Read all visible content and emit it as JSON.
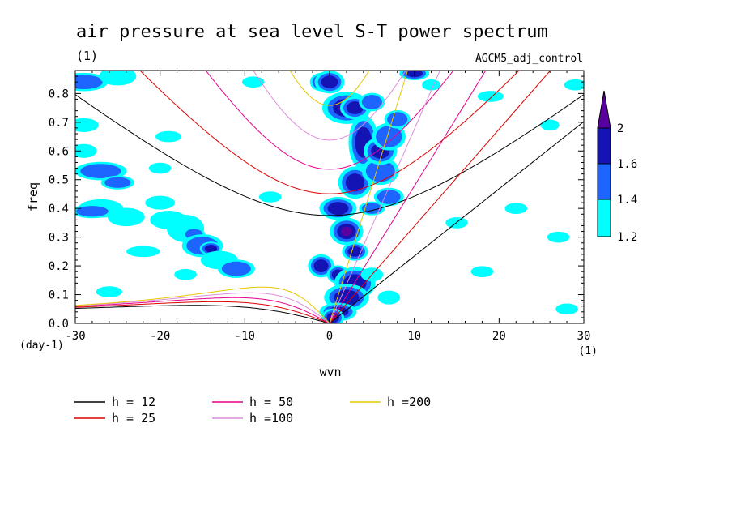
{
  "chart_data": {
    "type": "heatmap",
    "title": "air pressure at sea level S-T power spectrum",
    "subtitle_units": "(1)",
    "dataset_label": "AGCM5_adj_control",
    "xlabel": "wvn",
    "ylabel": "freq",
    "y_units": "(day-1)",
    "x_units": "(1)",
    "xlim": [
      -30,
      30
    ],
    "ylim": [
      0,
      0.88
    ],
    "x_ticks": [
      -30,
      -20,
      -10,
      0,
      10,
      20,
      30
    ],
    "x_tick_labels": [
      "-30",
      "-20",
      "-10",
      "0",
      "10",
      "20",
      "30"
    ],
    "y_ticks": [
      0.0,
      0.1,
      0.2,
      0.3,
      0.4,
      0.5,
      0.6,
      0.7,
      0.8
    ],
    "y_tick_labels": [
      "0.0",
      "0.1",
      "0.2",
      "0.3",
      "0.4",
      "0.5",
      "0.6",
      "0.7",
      "0.8"
    ],
    "colorbar": {
      "levels": [
        1.2,
        1.4,
        1.6,
        2
      ],
      "labels": [
        "1.2",
        "1.4",
        "1.6",
        "2"
      ],
      "colors": [
        "#00ffff",
        "#1e64ff",
        "#1414b4",
        "#5a00a0"
      ]
    },
    "dispersion_curves": [
      {
        "label": "h = 12",
        "h": 12,
        "color": "#000000"
      },
      {
        "label": "h = 25",
        "h": 25,
        "color": "#dc0000"
      },
      {
        "label": "h = 50",
        "h": 50,
        "color": "#e6008c"
      },
      {
        "label": "h =100",
        "h": 100,
        "color": "#dc8cdc"
      },
      {
        "label": "h =200",
        "h": 200,
        "color": "#e6c800"
      }
    ],
    "blobs": [
      {
        "x": -29,
        "y": 0.84,
        "w": 1.3,
        "h": 0.02,
        "level": 1
      },
      {
        "x": -25,
        "y": 0.86,
        "w": 1.0,
        "h": 0.02,
        "level": 0
      },
      {
        "x": -29,
        "y": 0.69,
        "w": 0.8,
        "h": 0.015,
        "level": 0
      },
      {
        "x": -27,
        "y": 0.53,
        "w": 1.4,
        "h": 0.02,
        "level": 1
      },
      {
        "x": -25,
        "y": 0.49,
        "w": 0.9,
        "h": 0.015,
        "level": 1
      },
      {
        "x": -29,
        "y": 0.6,
        "w": 0.7,
        "h": 0.015,
        "level": 0
      },
      {
        "x": -27,
        "y": 0.4,
        "w": 1.2,
        "h": 0.02,
        "level": 0
      },
      {
        "x": -24,
        "y": 0.37,
        "w": 1.0,
        "h": 0.02,
        "level": 0
      },
      {
        "x": -20,
        "y": 0.42,
        "w": 0.8,
        "h": 0.015,
        "level": 0
      },
      {
        "x": -17,
        "y": 0.33,
        "w": 1.0,
        "h": 0.03,
        "level": 0
      },
      {
        "x": -16,
        "y": 0.31,
        "w": 0.6,
        "h": 0.015,
        "level": 1
      },
      {
        "x": -15,
        "y": 0.27,
        "w": 1.1,
        "h": 0.025,
        "level": 1
      },
      {
        "x": -14,
        "y": 0.26,
        "w": 0.6,
        "h": 0.015,
        "level": 2
      },
      {
        "x": -13,
        "y": 0.22,
        "w": 1.0,
        "h": 0.02,
        "level": 0
      },
      {
        "x": -11,
        "y": 0.19,
        "w": 1.0,
        "h": 0.02,
        "level": 1
      },
      {
        "x": -19,
        "y": 0.36,
        "w": 1.0,
        "h": 0.02,
        "level": 0
      },
      {
        "x": -28,
        "y": 0.39,
        "w": 1.1,
        "h": 0.015,
        "level": 1
      },
      {
        "x": -20,
        "y": 0.54,
        "w": 0.6,
        "h": 0.012,
        "level": 0
      },
      {
        "x": -22,
        "y": 0.25,
        "w": 0.9,
        "h": 0.012,
        "level": 0
      },
      {
        "x": -26,
        "y": 0.11,
        "w": 0.7,
        "h": 0.012,
        "level": 0
      },
      {
        "x": -19,
        "y": 0.65,
        "w": 0.7,
        "h": 0.012,
        "level": 0
      },
      {
        "x": -17,
        "y": 0.17,
        "w": 0.6,
        "h": 0.012,
        "level": 0
      },
      {
        "x": -9,
        "y": 0.84,
        "w": 0.6,
        "h": 0.012,
        "level": 0
      },
      {
        "x": -7,
        "y": 0.44,
        "w": 0.6,
        "h": 0.012,
        "level": 0
      },
      {
        "x": -1,
        "y": 0.84,
        "w": 0.6,
        "h": 0.02,
        "level": 1
      },
      {
        "x": 0,
        "y": 0.84,
        "w": 0.8,
        "h": 0.025,
        "level": 2
      },
      {
        "x": 2,
        "y": 0.75,
        "w": 1.3,
        "h": 0.035,
        "level": 3
      },
      {
        "x": 3,
        "y": 0.75,
        "w": 0.8,
        "h": 0.025,
        "level": 2
      },
      {
        "x": 5,
        "y": 0.77,
        "w": 0.7,
        "h": 0.02,
        "level": 1
      },
      {
        "x": 4,
        "y": 0.63,
        "w": 0.8,
        "h": 0.06,
        "level": 2
      },
      {
        "x": 3,
        "y": 0.49,
        "w": 0.9,
        "h": 0.035,
        "level": 2
      },
      {
        "x": 1,
        "y": 0.4,
        "w": 1.0,
        "h": 0.025,
        "level": 2
      },
      {
        "x": 2,
        "y": 0.32,
        "w": 0.9,
        "h": 0.03,
        "level": 3
      },
      {
        "x": 3,
        "y": 0.25,
        "w": 0.7,
        "h": 0.02,
        "level": 2
      },
      {
        "x": -1,
        "y": 0.2,
        "w": 0.7,
        "h": 0.025,
        "level": 2
      },
      {
        "x": 1,
        "y": 0.17,
        "w": 0.6,
        "h": 0.02,
        "level": 2
      },
      {
        "x": 3,
        "y": 0.14,
        "w": 1.1,
        "h": 0.035,
        "level": 2
      },
      {
        "x": 2,
        "y": 0.09,
        "w": 1.2,
        "h": 0.03,
        "level": 2
      },
      {
        "x": 1,
        "y": 0.04,
        "w": 1.0,
        "h": 0.02,
        "level": 2
      },
      {
        "x": 0.4,
        "y": 0.02,
        "w": 0.6,
        "h": 0.02,
        "level": 3
      },
      {
        "x": 6,
        "y": 0.53,
        "w": 1.0,
        "h": 0.03,
        "level": 1
      },
      {
        "x": 6,
        "y": 0.6,
        "w": 0.9,
        "h": 0.03,
        "level": 2
      },
      {
        "x": 7,
        "y": 0.65,
        "w": 0.9,
        "h": 0.03,
        "level": 1
      },
      {
        "x": 5,
        "y": 0.4,
        "w": 0.7,
        "h": 0.015,
        "level": 1
      },
      {
        "x": 7,
        "y": 0.44,
        "w": 0.8,
        "h": 0.02,
        "level": 1
      },
      {
        "x": 8,
        "y": 0.71,
        "w": 0.7,
        "h": 0.02,
        "level": 1
      },
      {
        "x": 10,
        "y": 0.87,
        "w": 0.8,
        "h": 0.015,
        "level": 2
      },
      {
        "x": 5,
        "y": 0.17,
        "w": 0.6,
        "h": 0.015,
        "level": 0
      },
      {
        "x": 7,
        "y": 0.09,
        "w": 0.6,
        "h": 0.015,
        "level": 0
      },
      {
        "x": 15,
        "y": 0.35,
        "w": 0.6,
        "h": 0.012,
        "level": 0
      },
      {
        "x": 19,
        "y": 0.79,
        "w": 0.7,
        "h": 0.012,
        "level": 0
      },
      {
        "x": 22,
        "y": 0.4,
        "w": 0.6,
        "h": 0.012,
        "level": 0
      },
      {
        "x": 27,
        "y": 0.3,
        "w": 0.6,
        "h": 0.012,
        "level": 0
      },
      {
        "x": 28,
        "y": 0.05,
        "w": 0.6,
        "h": 0.012,
        "level": 0
      },
      {
        "x": 29,
        "y": 0.83,
        "w": 0.6,
        "h": 0.012,
        "level": 0
      },
      {
        "x": 26,
        "y": 0.69,
        "w": 0.5,
        "h": 0.012,
        "level": 0
      },
      {
        "x": 12,
        "y": 0.83,
        "w": 0.5,
        "h": 0.012,
        "level": 0
      },
      {
        "x": 18,
        "y": 0.18,
        "w": 0.6,
        "h": 0.012,
        "level": 0
      }
    ]
  }
}
